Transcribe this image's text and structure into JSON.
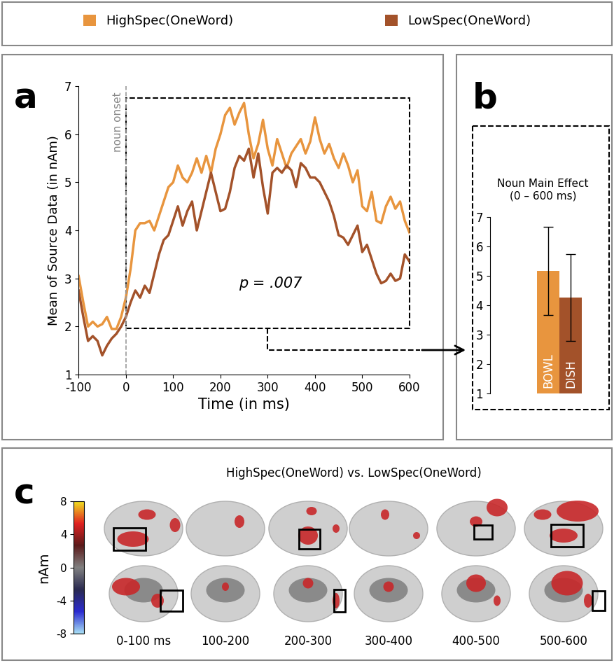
{
  "chart_data": [
    {
      "panel_label": "a",
      "type": "line",
      "x_label": "Time (in ms)",
      "y_label": "Mean of Source Data (in nAm)",
      "onset": 0,
      "onset_label": "noun onset",
      "window": [
        0,
        600
      ],
      "stat_label": "p = .007",
      "legend": "upper center",
      "x": [
        -100,
        -90,
        -80,
        -70,
        -60,
        -50,
        -40,
        -30,
        -20,
        -10,
        0,
        10,
        20,
        30,
        40,
        50,
        60,
        70,
        80,
        90,
        100,
        110,
        120,
        130,
        140,
        150,
        160,
        170,
        180,
        190,
        200,
        210,
        220,
        230,
        240,
        250,
        260,
        270,
        280,
        290,
        300,
        310,
        320,
        330,
        340,
        350,
        360,
        370,
        380,
        390,
        400,
        410,
        420,
        430,
        440,
        450,
        460,
        470,
        480,
        490,
        500,
        510,
        520,
        530,
        540,
        550,
        560,
        570,
        580,
        590,
        600
      ],
      "series": [
        {
          "name": "HighSpec(OneWord)",
          "color": "#E8953E",
          "values": [
            3.05,
            2.5,
            2.0,
            2.1,
            2.0,
            2.05,
            2.2,
            1.95,
            1.95,
            2.2,
            2.6,
            3.2,
            4.0,
            4.15,
            4.15,
            4.2,
            4.0,
            4.3,
            4.6,
            4.9,
            5.0,
            5.35,
            5.1,
            5.0,
            5.2,
            5.5,
            5.2,
            5.55,
            5.2,
            5.7,
            6.0,
            6.4,
            6.55,
            6.2,
            6.45,
            6.65,
            6.0,
            5.5,
            5.8,
            6.3,
            5.7,
            5.35,
            5.9,
            5.6,
            5.3,
            5.6,
            5.75,
            5.9,
            5.6,
            5.85,
            6.35,
            5.9,
            5.6,
            5.8,
            5.5,
            5.3,
            5.6,
            5.35,
            5.0,
            5.25,
            4.5,
            4.4,
            4.8,
            4.2,
            4.15,
            4.5,
            4.7,
            4.45,
            4.6,
            4.2,
            3.95
          ]
        },
        {
          "name": "LowSpec(OneWord)",
          "color": "#A3522A",
          "values": [
            2.75,
            2.2,
            1.7,
            1.8,
            1.7,
            1.4,
            1.6,
            1.75,
            1.85,
            2.0,
            2.2,
            2.5,
            2.75,
            2.6,
            2.85,
            2.7,
            3.1,
            3.5,
            3.8,
            3.9,
            4.2,
            4.5,
            4.1,
            4.4,
            4.6,
            4.0,
            4.4,
            4.8,
            5.2,
            4.8,
            4.4,
            4.45,
            4.8,
            5.3,
            5.55,
            5.45,
            5.7,
            5.1,
            5.6,
            4.9,
            4.35,
            5.2,
            5.3,
            5.2,
            5.35,
            5.25,
            4.9,
            5.4,
            5.3,
            5.1,
            5.1,
            5.0,
            4.8,
            4.6,
            4.3,
            3.9,
            3.85,
            3.7,
            3.9,
            4.1,
            3.55,
            3.7,
            3.4,
            3.1,
            2.9,
            2.95,
            3.1,
            2.95,
            3.0,
            3.5,
            3.35
          ]
        }
      ],
      "xlim": [
        -100,
        600
      ],
      "xticks": [
        -100,
        0,
        100,
        200,
        300,
        400,
        500,
        600
      ],
      "ylim": [
        1,
        7
      ],
      "yticks": [
        1,
        2,
        3,
        4,
        5,
        6,
        7
      ]
    },
    {
      "panel_label": "b",
      "type": "bar",
      "title": "Noun Main Effect\n(0 – 600 ms)",
      "categories": [
        "BOWL",
        "DISH"
      ],
      "values": [
        5.15,
        4.25
      ],
      "errors": [
        1.5,
        1.47
      ],
      "colors": [
        "#E8953E",
        "#A3522A"
      ],
      "tick_labels": "y",
      "ylim": [
        1,
        7
      ],
      "yticks": [
        1,
        2,
        3,
        4,
        5,
        6,
        7
      ]
    },
    {
      "panel_label": "c",
      "type": "brain_maps",
      "title": "HighSpec(OneWord) vs. LowSpec(OneWord)",
      "windows": [
        "0-100 ms",
        "100-200",
        "200-300",
        "300-400",
        "400-500",
        "500-600"
      ],
      "colorbar_lim": [
        -8,
        8
      ],
      "colorbar_ticks": [
        -8,
        -4,
        0,
        4,
        8
      ],
      "colorbar_label": "nAm"
    }
  ]
}
